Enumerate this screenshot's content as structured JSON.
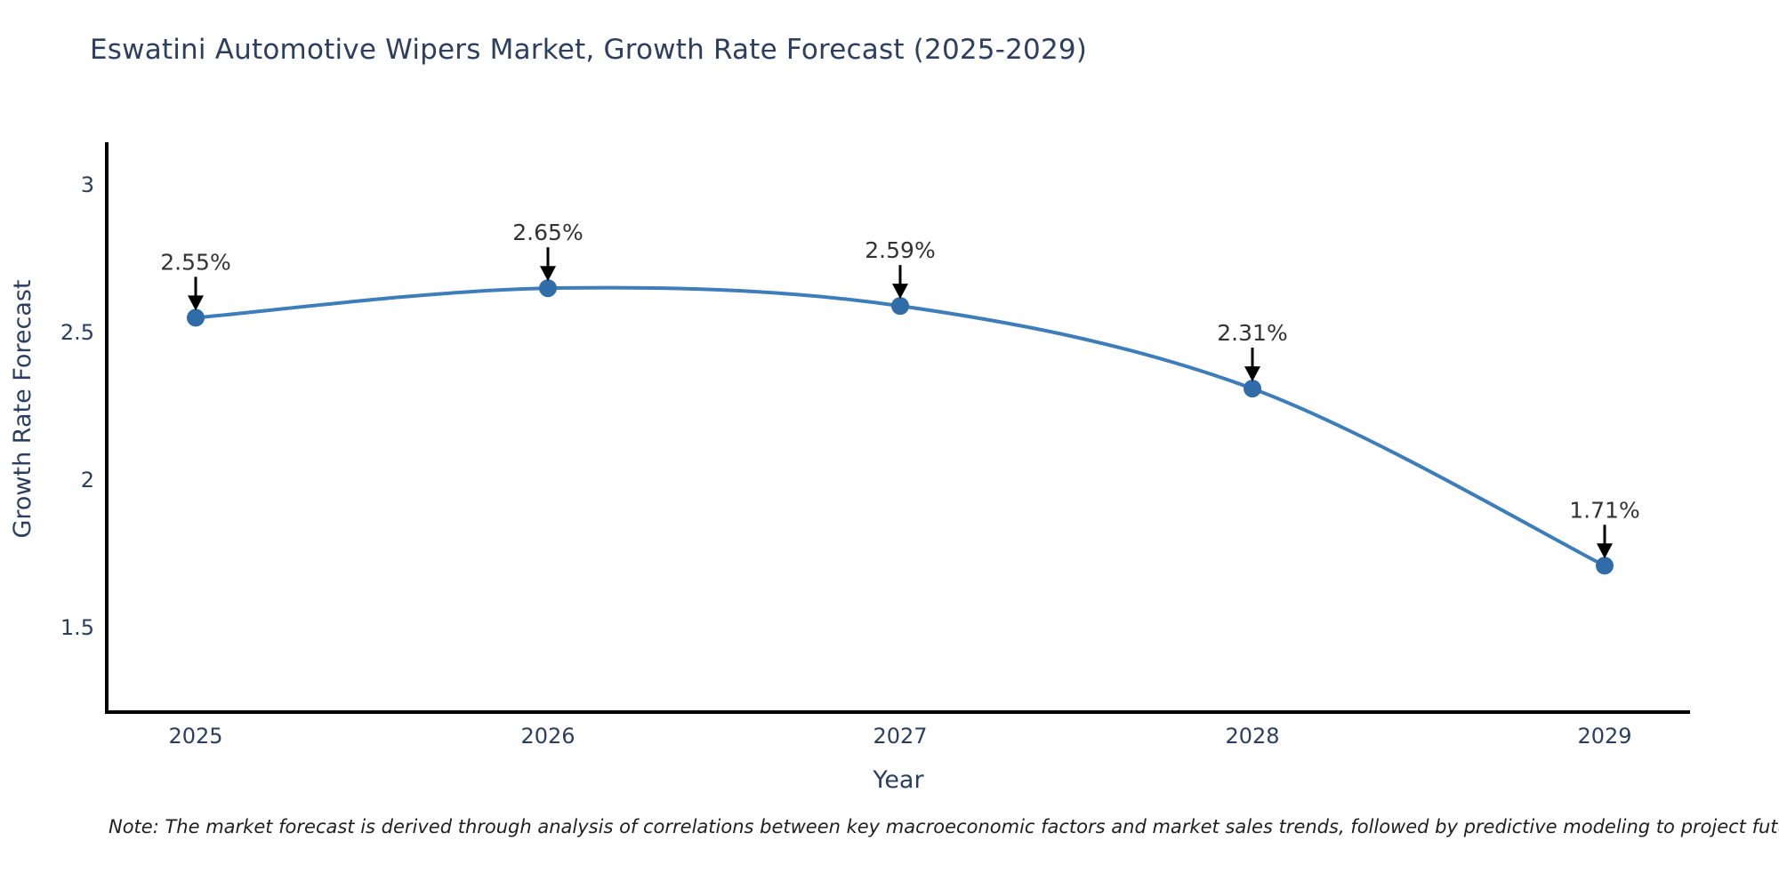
{
  "chart": {
    "title": "Eswatini Automotive Wipers Market, Growth Rate Forecast (2025-2029)",
    "x_label": "Year",
    "y_label": "Growth Rate Forecast",
    "note": "Note: The market forecast is derived through analysis of correlations between key macroeconomic factors and market sales trends, followed by predictive modeling to project future sales",
    "colors": {
      "title_text": "#2d3f5f",
      "axis_text": "#2a3f5f",
      "annotation_text": "#333333",
      "axis_line": "#000000",
      "arrow": "#000000",
      "line": "#3d7eba",
      "marker": "#2f6ca8",
      "background": "#ffffff"
    }
  },
  "chart_data": {
    "type": "line",
    "title": "Eswatini Automotive Wipers Market, Growth Rate Forecast (2025-2029)",
    "xlabel": "Year",
    "ylabel": "Growth Rate Forecast",
    "x": [
      2025,
      2026,
      2027,
      2028,
      2029
    ],
    "series": [
      {
        "name": "Growth Rate Forecast",
        "values": [
          2.55,
          2.65,
          2.59,
          2.31,
          1.71
        ],
        "point_labels": [
          "2.55%",
          "2.65%",
          "2.59%",
          "2.31%",
          "1.71%"
        ]
      }
    ],
    "x_tick_labels": [
      "2025",
      "2026",
      "2027",
      "2028",
      "2029"
    ],
    "y_ticks": [
      1.5,
      2,
      2.5,
      3
    ],
    "y_tick_labels": [
      "1.5",
      "2",
      "2.5",
      "3"
    ],
    "ylim": [
      1.2,
      3.15
    ],
    "grid": false,
    "legend": null,
    "line_style": "smooth-spline",
    "annotations": "value labels above each point with downward black arrows",
    "footnote": "Note: The market forecast is derived through analysis of correlations between key macroeconomic factors and market sales trends, followed by predictive modeling to project future sales"
  }
}
